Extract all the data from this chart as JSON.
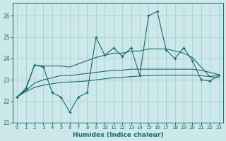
{
  "xlabel": "Humidex (Indice chaleur)",
  "xlim": [
    -0.5,
    23.5
  ],
  "ylim": [
    21,
    26.6
  ],
  "yticks": [
    21,
    22,
    23,
    24,
    25,
    26
  ],
  "xticks": [
    0,
    1,
    2,
    3,
    4,
    5,
    6,
    7,
    8,
    9,
    10,
    11,
    12,
    13,
    14,
    15,
    16,
    17,
    18,
    19,
    20,
    21,
    22,
    23
  ],
  "background_color": "#cce8ea",
  "grid_color": "#a0c8cc",
  "line_color": "#1a6b6b",
  "series": [
    {
      "y": [
        22.2,
        22.6,
        23.7,
        23.6,
        22.4,
        22.2,
        21.5,
        22.2,
        22.4,
        25.0,
        24.15,
        24.5,
        24.1,
        24.5,
        23.2,
        26.0,
        26.2,
        24.4,
        24.0,
        24.5,
        23.9,
        23.0,
        22.95,
        23.2
      ],
      "marker": true
    },
    {
      "y": [
        22.2,
        22.55,
        23.7,
        23.65,
        23.65,
        23.65,
        23.6,
        23.75,
        23.9,
        24.05,
        24.15,
        24.25,
        24.25,
        24.35,
        24.35,
        24.45,
        24.45,
        24.45,
        24.35,
        24.25,
        24.05,
        23.6,
        23.15,
        23.25
      ],
      "marker": false
    },
    {
      "y": [
        22.2,
        22.5,
        22.85,
        23.0,
        23.1,
        23.2,
        23.2,
        23.25,
        23.3,
        23.35,
        23.4,
        23.45,
        23.45,
        23.5,
        23.5,
        23.5,
        23.5,
        23.5,
        23.5,
        23.5,
        23.5,
        23.45,
        23.35,
        23.25
      ],
      "marker": false
    },
    {
      "y": [
        22.2,
        22.45,
        22.65,
        22.75,
        22.82,
        22.88,
        22.9,
        22.92,
        22.95,
        23.0,
        23.05,
        23.1,
        23.12,
        23.15,
        23.18,
        23.2,
        23.22,
        23.22,
        23.22,
        23.22,
        23.22,
        23.2,
        23.15,
        23.1
      ],
      "marker": false
    }
  ]
}
